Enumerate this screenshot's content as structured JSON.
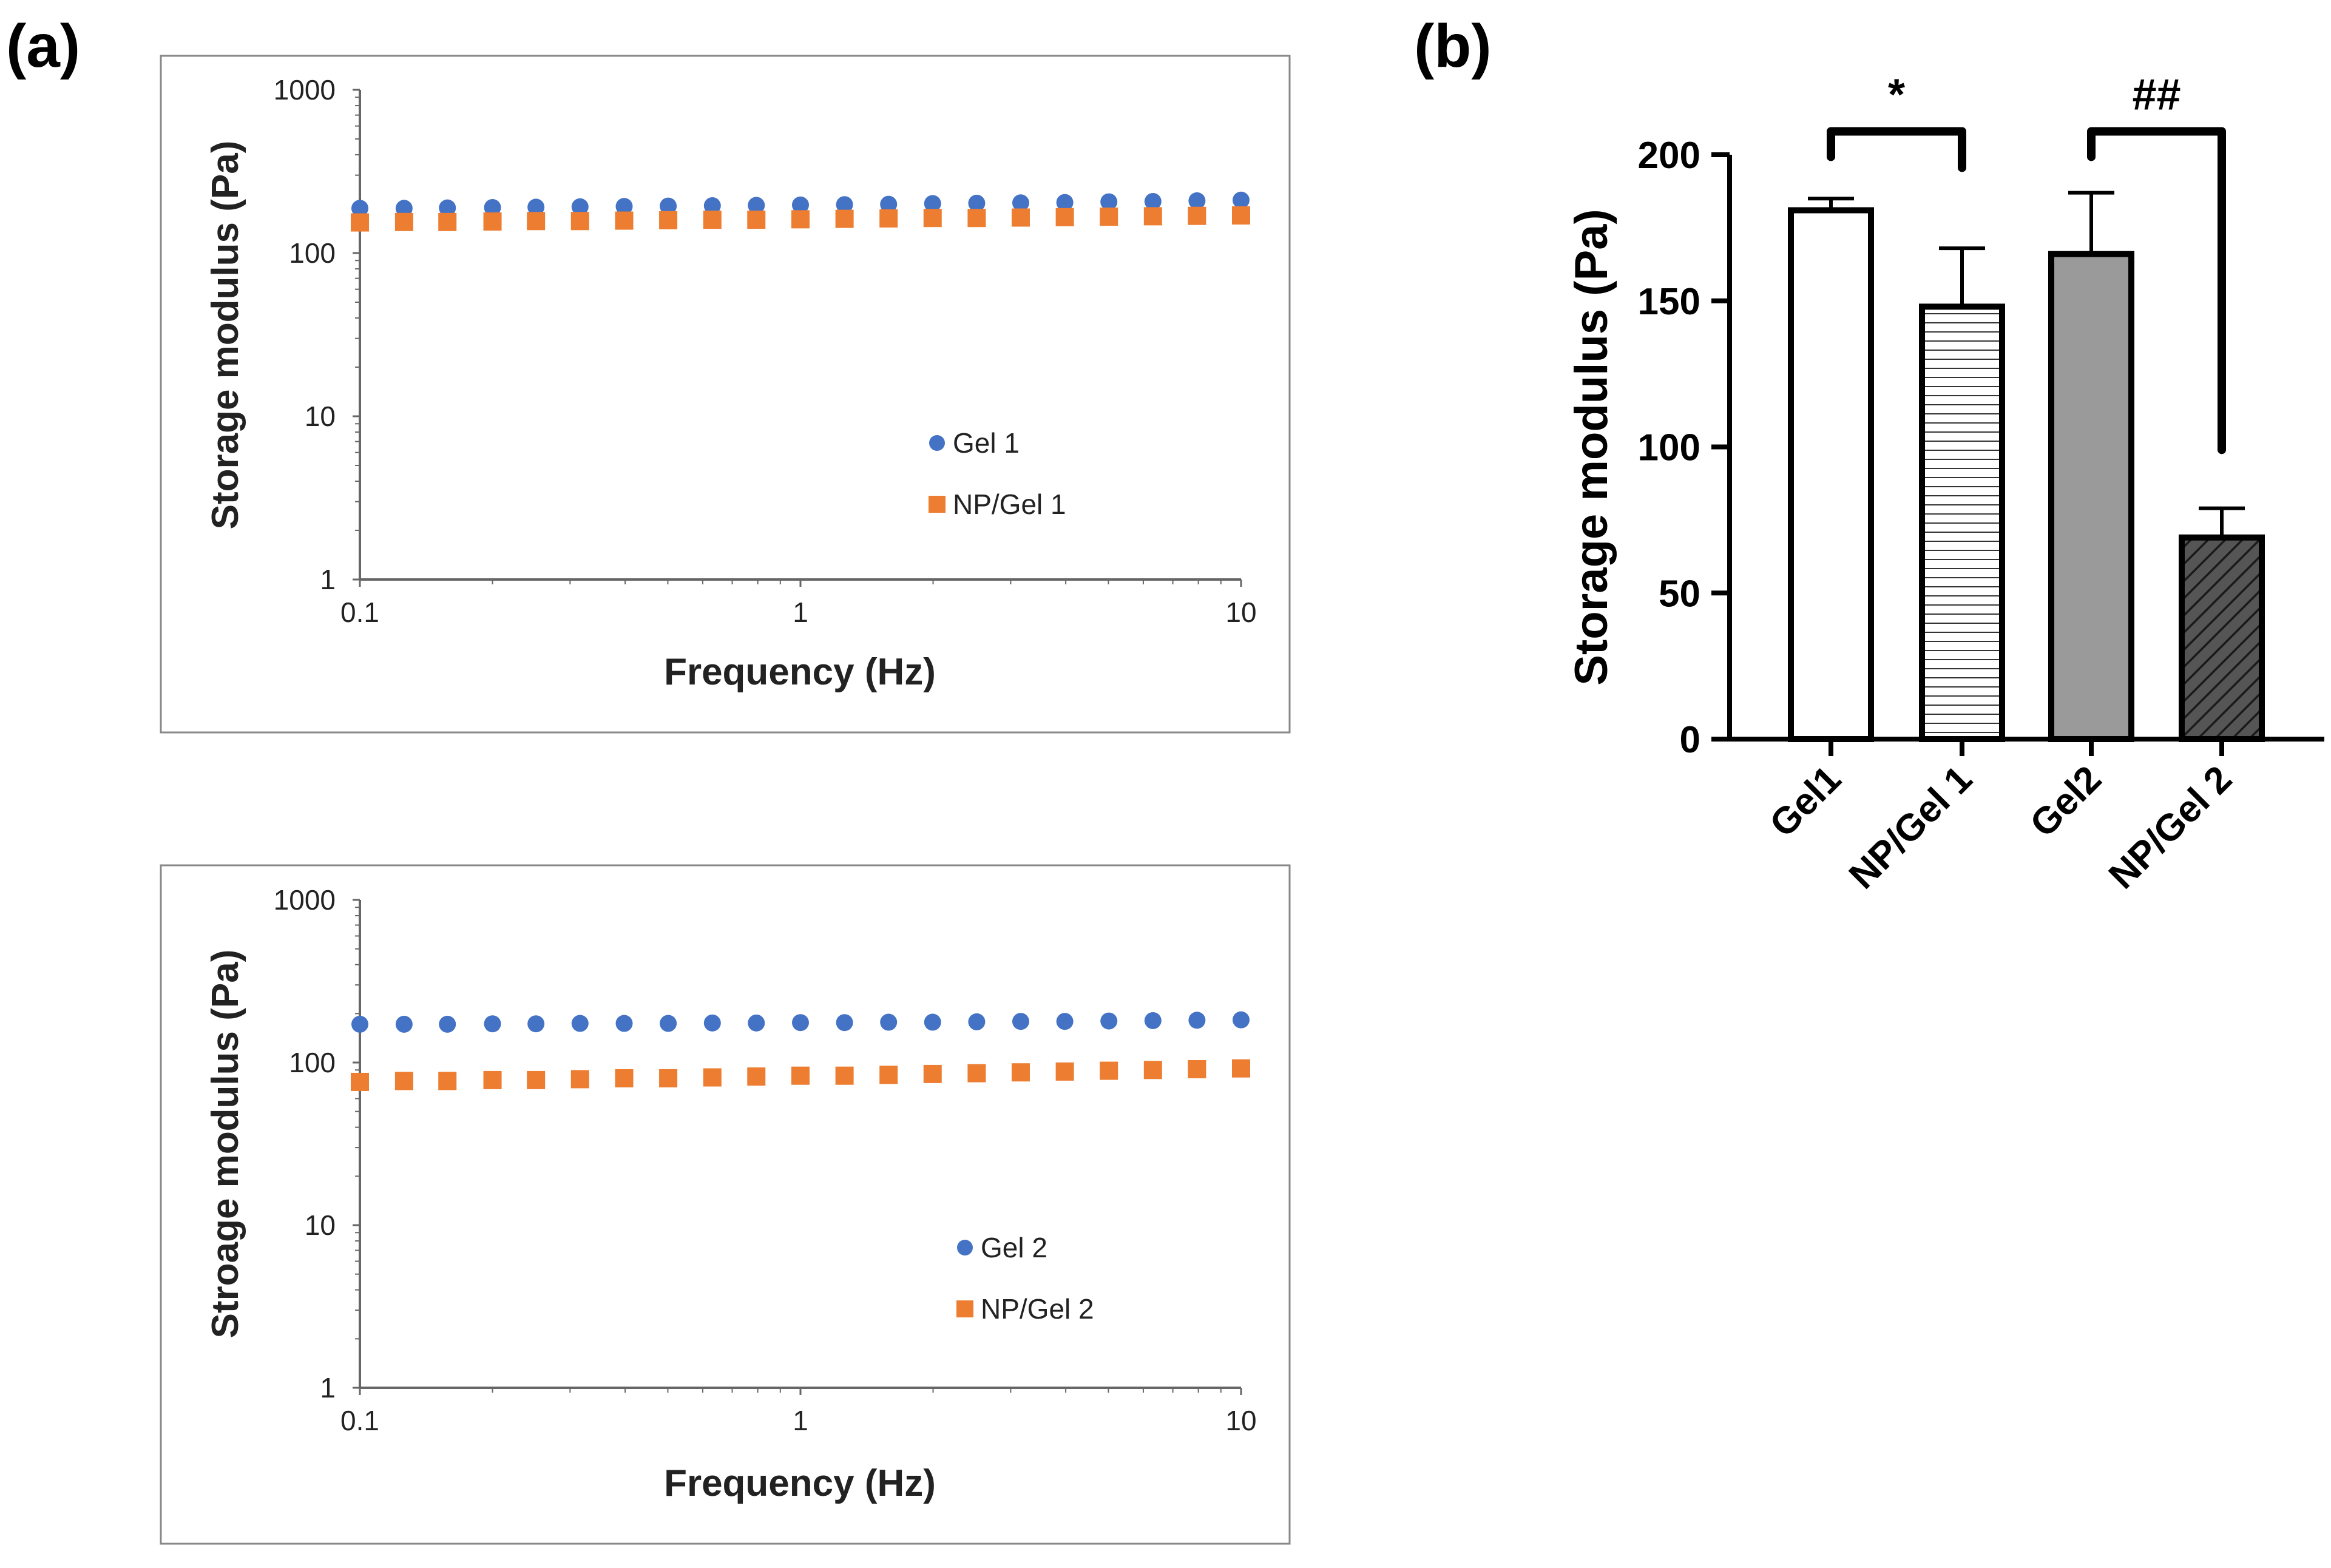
{
  "panel_labels": {
    "a": "(a)",
    "b": "(b)"
  },
  "colors": {
    "gel": "#4472C4",
    "np_gel": "#ED7D31",
    "bar_gel1": "#ffffff",
    "bar_np_gel1": "#ffffff",
    "bar_gel2": "#9a9a9a",
    "bar_np_gel2": "#555555",
    "frame": "#888888"
  },
  "chart_data": [
    {
      "id": "a1",
      "type": "scatter",
      "title": "",
      "xlabel": "Frequency (Hz)",
      "ylabel": "Storage modulus (Pa)",
      "xscale": "log",
      "yscale": "log",
      "xlim": [
        0.1,
        10
      ],
      "ylim": [
        1,
        1000
      ],
      "xticks": [
        0.1,
        1,
        10
      ],
      "xtick_labels": [
        "0.1",
        "1",
        "10"
      ],
      "yticks": [
        1,
        10,
        100,
        1000
      ],
      "ytick_labels": [
        "1",
        "10",
        "100",
        "1000"
      ],
      "legend_position": "center-right",
      "x": [
        0.1,
        0.126,
        0.158,
        0.2,
        0.251,
        0.316,
        0.398,
        0.501,
        0.631,
        0.794,
        1.0,
        1.259,
        1.585,
        1.995,
        2.512,
        3.162,
        3.981,
        5.012,
        6.31,
        7.943,
        10.0
      ],
      "series": [
        {
          "name": "Gel 1",
          "marker": "circle",
          "color": "#4472C4",
          "values": [
            188,
            188,
            189,
            190,
            191,
            192,
            193,
            194,
            195,
            196,
            197,
            198,
            199,
            201,
            202,
            203,
            204,
            206,
            207,
            209,
            211
          ]
        },
        {
          "name": "NP/Gel 1",
          "marker": "square",
          "color": "#ED7D31",
          "values": [
            154,
            155,
            155,
            156,
            157,
            157,
            158,
            159,
            160,
            160,
            161,
            162,
            163,
            164,
            164,
            165,
            166,
            167,
            168,
            169,
            170
          ]
        }
      ]
    },
    {
      "id": "a2",
      "type": "scatter",
      "title": "",
      "xlabel": "Frequency (Hz)",
      "ylabel": "Stroage modulus (Pa)",
      "xscale": "log",
      "yscale": "log",
      "xlim": [
        0.1,
        10
      ],
      "ylim": [
        1,
        1000
      ],
      "xticks": [
        0.1,
        1,
        10
      ],
      "xtick_labels": [
        "0.1",
        "1",
        "10"
      ],
      "yticks": [
        1,
        10,
        100,
        1000
      ],
      "ytick_labels": [
        "1",
        "10",
        "100",
        "1000"
      ],
      "legend_position": "center-right",
      "x": [
        0.1,
        0.126,
        0.158,
        0.2,
        0.251,
        0.316,
        0.398,
        0.501,
        0.631,
        0.794,
        1.0,
        1.259,
        1.585,
        1.995,
        2.512,
        3.162,
        3.981,
        5.012,
        6.31,
        7.943,
        10.0
      ],
      "series": [
        {
          "name": "Gel 2",
          "marker": "circle",
          "color": "#4472C4",
          "values": [
            172,
            172,
            172,
            173,
            173,
            174,
            174,
            174,
            175,
            175,
            176,
            176,
            177,
            177,
            178,
            179,
            179,
            180,
            181,
            182,
            183
          ]
        },
        {
          "name": "NP/Gel 2",
          "marker": "square",
          "color": "#ED7D31",
          "values": [
            76,
            77,
            77,
            78,
            78,
            79,
            80,
            80,
            81,
            82,
            83,
            83,
            84,
            85,
            86,
            87,
            88,
            89,
            90,
            91,
            92
          ]
        }
      ]
    },
    {
      "id": "b",
      "type": "bar",
      "title": "",
      "xlabel": "",
      "ylabel": "Storage modulus (Pa)",
      "ylim": [
        0,
        200
      ],
      "yticks": [
        0,
        50,
        100,
        150,
        200
      ],
      "ytick_labels": [
        "0",
        "50",
        "100",
        "150",
        "200"
      ],
      "categories": [
        "Gel1",
        "NP/Gel 1",
        "Gel2",
        "NP/Gel 2"
      ],
      "values": [
        181,
        148,
        166,
        69
      ],
      "errors": [
        4,
        20,
        21,
        10
      ],
      "fills": [
        "white",
        "horizontal-lines",
        "gray",
        "diagonal-lines"
      ],
      "annotations": [
        {
          "label": "*",
          "from": 0,
          "to": 1,
          "level": 208
        },
        {
          "label": "##",
          "from": 2,
          "to": 3,
          "level": 208
        }
      ]
    }
  ]
}
